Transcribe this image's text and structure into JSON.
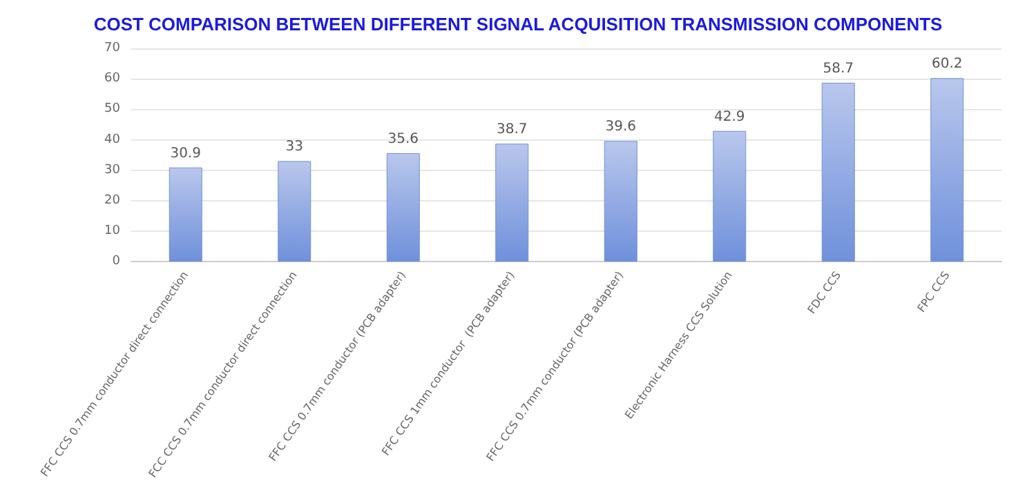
{
  "chart_data": {
    "type": "bar",
    "title": "COST COMPARISON BETWEEN DIFFERENT SIGNAL ACQUISITION TRANSMISSION COMPONENTS",
    "categories": [
      "FFC CCS 0.7mm conductor direct connection",
      "FCC CCS 0.7mm conductor direct connection",
      "FFC CCS 0.7mm conductor (PCB adapter)",
      "FFC CCS 1mm conductor  (PCB adapter)",
      "FFC CCS 0.7mm conductor (PCB adapter)",
      "Electronic Harness CCS Solution",
      "FDC CCS",
      "FPC CCS"
    ],
    "values": [
      30.9,
      33,
      35.6,
      38.7,
      39.6,
      42.9,
      58.7,
      60.2
    ],
    "color": "#6f90db",
    "ylim": [
      0,
      70
    ],
    "yticks": [
      0,
      10,
      20,
      30,
      40,
      50,
      60,
      70
    ],
    "grid": "y",
    "data_labels": true
  }
}
